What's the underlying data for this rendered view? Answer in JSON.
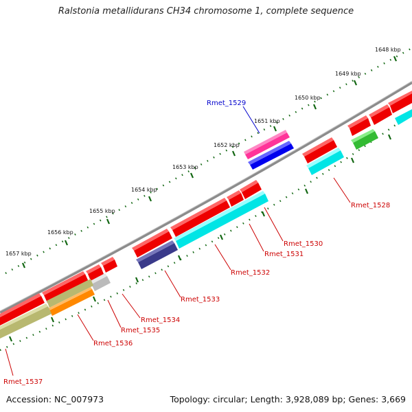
{
  "title": "Ralstonia metallidurans CH34 chromosome 1, complete sequence",
  "footer": {
    "accession": "Accession: NC_007973",
    "summary": "Topology: circular; Length: 3,928,089 bp; Genes: 3,669"
  },
  "ticks": [
    "1648 kbp",
    "1649 kbp",
    "1650 kbp",
    "1651 kbp",
    "1652 kbp",
    "1653 kbp",
    "1654 kbp",
    "1655 kbp",
    "1656 kbp",
    "1657 kbp"
  ],
  "genes": [
    {
      "name": "Rmet_1528",
      "color": "#cc0000"
    },
    {
      "name": "Rmet_1529",
      "color": "#0000cc"
    },
    {
      "name": "Rmet_1530",
      "color": "#cc0000"
    },
    {
      "name": "Rmet_1531",
      "color": "#cc0000"
    },
    {
      "name": "Rmet_1532",
      "color": "#cc0000"
    },
    {
      "name": "Rmet_1533",
      "color": "#cc0000"
    },
    {
      "name": "Rmet_1534",
      "color": "#cc0000"
    },
    {
      "name": "Rmet_1535",
      "color": "#cc0000"
    },
    {
      "name": "Rmet_1536",
      "color": "#cc0000"
    },
    {
      "name": "Rmet_1537",
      "color": "#cc0000"
    }
  ],
  "colors": {
    "backbone": "#8c8c8c",
    "cds_red": "#ff0000",
    "cds_cyan": "#00e5e5",
    "cds_blue": "#0000ee",
    "cds_magenta": "#ff3399",
    "cds_navy": "#3a3a8a",
    "cds_green": "#33bb33",
    "cds_gray": "#bbbbbb",
    "cds_orange": "#ff8800",
    "cds_olive": "#b8b870",
    "tick_dot": "#116611"
  }
}
